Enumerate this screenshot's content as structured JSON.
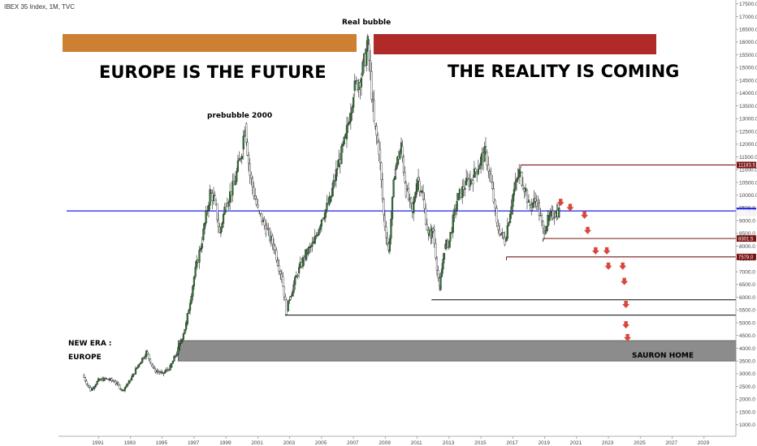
{
  "header": {
    "title": "IBEX 35 Index, 1M, TVC"
  },
  "chart_data": {
    "type": "line",
    "title": "IBEX 35 Index, 1M, TVC",
    "xlim": [
      1989.0,
      2031.0
    ],
    "ylim": [
      550,
      17650
    ],
    "x_ticks": [
      "1991",
      "1993",
      "1995",
      "1997",
      "1999",
      "2001",
      "2003",
      "2005",
      "2007",
      "2009",
      "2011",
      "2013",
      "2015",
      "2017",
      "2019",
      "2021",
      "2023",
      "2025",
      "2027",
      "2029"
    ],
    "y_ticks": [
      1000,
      1500,
      2000,
      2500,
      3000,
      3500,
      4000,
      4500,
      5000,
      5500,
      6000,
      6500,
      7000,
      7500,
      8000,
      8500,
      9000,
      9500,
      10000,
      10500,
      11000,
      11500,
      12000,
      12500,
      13000,
      13500,
      14000,
      14500,
      15000,
      15500,
      16000,
      16500,
      17000,
      17500
    ],
    "y_tick_labels": [
      "1000.0",
      "1500.0",
      "2000.0",
      "2500.0",
      "3000.0",
      "3500.0",
      "4000.0",
      "4500.0",
      "5000.0",
      "5500.0",
      "6000.0",
      "6500.0",
      "7000.0",
      "7500.0",
      "8000.0",
      "8500.0",
      "9000.0",
      "9500.0",
      "10000.0",
      "10500.0",
      "11000.0",
      "11500.0",
      "12000.0",
      "12500.0",
      "13000.0",
      "13500.0",
      "14000.0",
      "14500.0",
      "15000.0",
      "15500.0",
      "16000.0",
      "16500.0",
      "17000.0",
      "17500.0"
    ],
    "series": [
      {
        "x": [
          1990.0,
          1990.5,
          1991.0,
          1991.5,
          1992.0,
          1992.5,
          1993.0,
          1993.5,
          1994.0,
          1994.5,
          1995.0,
          1995.5,
          1996.0,
          1996.5,
          1997.0,
          1997.5,
          1998.0,
          1998.3,
          1998.6,
          1999.0,
          1999.5,
          2000.0,
          2000.2,
          2000.5,
          2001.0,
          2001.5,
          2002.0,
          2002.5,
          2002.8,
          2003.0,
          2003.5,
          2004.0,
          2004.5,
          2005.0,
          2005.5,
          2006.0,
          2006.5,
          2007.0,
          2007.5,
          2007.9,
          2008.3,
          2008.6,
          2008.9,
          2009.2,
          2009.6,
          2010.0,
          2010.3,
          2010.7,
          2011.0,
          2011.3,
          2011.7,
          2012.0,
          2012.4,
          2012.7,
          2013.0,
          2013.5,
          2014.0,
          2014.5,
          2015.0,
          2015.3,
          2015.8,
          2016.0,
          2016.5,
          2017.0,
          2017.4,
          2017.8,
          2018.0,
          2018.5,
          2018.9,
          2019.2,
          2019.6,
          2019.9
        ],
        "y": [
          2950,
          2350,
          2750,
          2800,
          2700,
          2350,
          2750,
          3350,
          3850,
          3150,
          3000,
          3250,
          3950,
          4950,
          6800,
          8250,
          10100,
          9800,
          8500,
          9700,
          10400,
          11800,
          12800,
          10800,
          9400,
          8700,
          8000,
          6800,
          5450,
          6000,
          6950,
          7700,
          8100,
          9100,
          9750,
          11100,
          12200,
          14100,
          14700,
          15900,
          12800,
          11800,
          9200,
          7800,
          11000,
          11900,
          10200,
          9300,
          10700,
          10100,
          8400,
          8600,
          6300,
          7900,
          8200,
          9800,
          10400,
          10700,
          11400,
          11700,
          9800,
          8800,
          8200,
          10000,
          10900,
          10200,
          9600,
          9800,
          8600,
          9000,
          9300,
          9380
        ]
      }
    ],
    "annotations": {
      "real_bubble": "Real bubble",
      "prebubble": "prebubble 2000",
      "left_headline": "EUROPE IS THE FUTURE",
      "right_headline": "THE REALITY IS COMING",
      "new_era_1": "NEW ERA :",
      "new_era_2": "EUROPE",
      "sauron": "SAURON HOME"
    },
    "price_labels": [
      {
        "text": "11183.5",
        "value": 11183.5,
        "color": "#7a1414"
      },
      {
        "text": "8301.5",
        "value": 8301.5,
        "color": "#7a1414"
      },
      {
        "text": "7579.0",
        "value": 7579.0,
        "color": "#7a1414"
      },
      {
        "text": "9381.0",
        "value": 9381.0,
        "color": "#1b22e8"
      },
      {
        "text": "9311.9",
        "value": 9311.9,
        "color": "#f2f2f2"
      }
    ],
    "lines": [
      {
        "name": "blue-level-line",
        "value": 9381.0,
        "from": 1989.0,
        "to": 2031.0,
        "color": "#1b22e8"
      },
      {
        "name": "level-line-11183",
        "value": 11183.5,
        "from": 2017.5,
        "to": 2031.0,
        "color": "#7a1414"
      },
      {
        "name": "level-line-8301",
        "value": 8301.5,
        "from": 2018.9,
        "to": 2031.0,
        "color": "#7a1414"
      },
      {
        "name": "level-line-7579",
        "value": 7579.0,
        "from": 2016.6,
        "to": 2031.0,
        "color": "#7a1414"
      },
      {
        "name": "support-line-5900",
        "value": 5900,
        "from": 2011.9,
        "to": 2031.0,
        "color": "#222222"
      },
      {
        "name": "support-line-5300",
        "value": 5300,
        "from": 2002.7,
        "to": 2031.0,
        "color": "#222222"
      }
    ],
    "colors": {
      "orange_bar": "#cd7f32",
      "red_bar": "#b02a2a",
      "sauron_zone": "#8c8c8c",
      "arrows": "#d9463a",
      "up_candle": "#2e7d32",
      "down_candle": "#444444"
    },
    "grid": false
  }
}
